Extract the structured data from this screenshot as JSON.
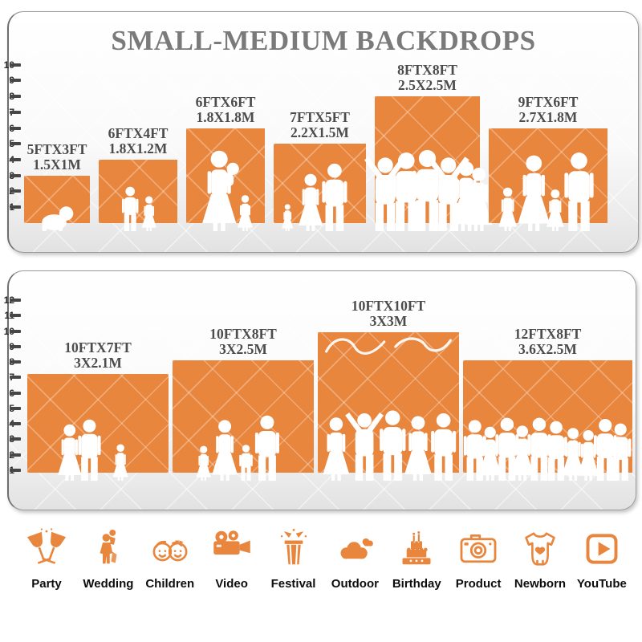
{
  "title": "SMALL-MEDIUM BACKDROPS",
  "accent_color": "#E8863E",
  "silhouette_color": "#FFFFFF",
  "ruler_unit": "FT",
  "panels": [
    {
      "name": "small-medium-group",
      "ruler": {
        "min": 1,
        "max": 10
      },
      "backdrops": [
        {
          "size_ft": "5FTX3FT",
          "size_m": "1.5X1M",
          "width_ft": 5,
          "height_ft": 3,
          "people": [
            {
              "type": "baby-crawl",
              "x": 0.48,
              "h": 0.62
            }
          ]
        },
        {
          "size_ft": "6FTX4FT",
          "size_m": "1.8X1.2M",
          "width_ft": 6,
          "height_ft": 4,
          "people": [
            {
              "type": "boy",
              "x": 0.4,
              "h": 0.7
            },
            {
              "type": "girl",
              "x": 0.64,
              "h": 0.55
            }
          ]
        },
        {
          "size_ft": "6FTX6FT",
          "size_m": "1.8X1.8M",
          "width_ft": 6,
          "height_ft": 6,
          "people": [
            {
              "type": "woman-baby",
              "x": 0.42,
              "h": 0.85
            },
            {
              "type": "girl",
              "x": 0.75,
              "h": 0.38
            }
          ]
        },
        {
          "size_ft": "7FTX5FT",
          "size_m": "2.2X1.5M",
          "width_ft": 7,
          "height_ft": 5,
          "people": [
            {
              "type": "girl",
              "x": 0.15,
              "h": 0.34
            },
            {
              "type": "woman",
              "x": 0.4,
              "h": 0.72
            },
            {
              "type": "man",
              "x": 0.66,
              "h": 0.85
            }
          ]
        },
        {
          "size_ft": "8FTX8FT",
          "size_m": "2.5X2.5M",
          "width_ft": 8,
          "height_ft": 8,
          "people": [
            {
              "type": "man-arms-up",
              "x": 0.1,
              "h": 0.58
            },
            {
              "type": "man",
              "x": 0.3,
              "h": 0.62
            },
            {
              "type": "man",
              "x": 0.5,
              "h": 0.64
            },
            {
              "type": "man-arms-up",
              "x": 0.7,
              "h": 0.58
            },
            {
              "type": "woman",
              "x": 0.87,
              "h": 0.55
            },
            {
              "type": "woman",
              "x": 0.99,
              "h": 0.5
            }
          ]
        },
        {
          "size_ft": "9FTX6FT",
          "size_m": "2.7X1.8M",
          "width_ft": 9,
          "height_ft": 6,
          "people": [
            {
              "type": "girl",
              "x": 0.16,
              "h": 0.46
            },
            {
              "type": "woman",
              "x": 0.38,
              "h": 0.8
            },
            {
              "type": "girl",
              "x": 0.56,
              "h": 0.44
            },
            {
              "type": "man",
              "x": 0.76,
              "h": 0.83
            }
          ]
        }
      ]
    },
    {
      "name": "medium-large-group",
      "ruler": {
        "min": 1,
        "max": 12
      },
      "backdrops": [
        {
          "size_ft": "10FTX7FT",
          "size_m": "3X2.1M",
          "width_ft": 10,
          "height_ft": 7,
          "people": [
            {
              "type": "woman",
              "x": 0.3,
              "h": 0.57
            },
            {
              "type": "man",
              "x": 0.44,
              "h": 0.62
            },
            {
              "type": "girl",
              "x": 0.66,
              "h": 0.37
            }
          ]
        },
        {
          "size_ft": "10FTX8FT",
          "size_m": "3X2.5M",
          "width_ft": 10,
          "height_ft": 8,
          "people": [
            {
              "type": "girl",
              "x": 0.22,
              "h": 0.31
            },
            {
              "type": "woman",
              "x": 0.37,
              "h": 0.54
            },
            {
              "type": "boy",
              "x": 0.52,
              "h": 0.32
            },
            {
              "type": "man",
              "x": 0.67,
              "h": 0.58
            }
          ]
        },
        {
          "size_ft": "10FTX10FT",
          "size_m": "3X3M",
          "width_ft": 10,
          "height_ft": 10,
          "decor": "script-squiggle",
          "people": [
            {
              "type": "woman",
              "x": 0.13,
              "h": 0.45
            },
            {
              "type": "man-arms-up",
              "x": 0.33,
              "h": 0.48
            },
            {
              "type": "man",
              "x": 0.53,
              "h": 0.5
            },
            {
              "type": "woman",
              "x": 0.71,
              "h": 0.46
            },
            {
              "type": "man",
              "x": 0.89,
              "h": 0.48
            }
          ]
        },
        {
          "size_ft": "12FTX8FT",
          "size_m": "3.6X2.5M",
          "width_ft": 12,
          "height_ft": 8,
          "people": [
            {
              "type": "man",
              "x": 0.07,
              "h": 0.54
            },
            {
              "type": "woman",
              "x": 0.16,
              "h": 0.48
            },
            {
              "type": "man",
              "x": 0.26,
              "h": 0.56
            },
            {
              "type": "woman",
              "x": 0.35,
              "h": 0.49
            },
            {
              "type": "man",
              "x": 0.45,
              "h": 0.56
            },
            {
              "type": "man",
              "x": 0.55,
              "h": 0.53
            },
            {
              "type": "woman",
              "x": 0.65,
              "h": 0.47
            },
            {
              "type": "woman",
              "x": 0.74,
              "h": 0.45
            },
            {
              "type": "man",
              "x": 0.84,
              "h": 0.55
            },
            {
              "type": "man",
              "x": 0.93,
              "h": 0.51
            }
          ]
        }
      ]
    }
  ],
  "categories": [
    {
      "label": "Party",
      "icon": "party-icon"
    },
    {
      "label": "Wedding",
      "icon": "wedding-icon"
    },
    {
      "label": "Children",
      "icon": "children-icon"
    },
    {
      "label": "Video",
      "icon": "video-icon"
    },
    {
      "label": "Festival",
      "icon": "festival-icon"
    },
    {
      "label": "Outdoor",
      "icon": "outdoor-icon"
    },
    {
      "label": "Birthday",
      "icon": "birthday-icon"
    },
    {
      "label": "Product",
      "icon": "product-icon"
    },
    {
      "label": "Newborn",
      "icon": "newborn-icon"
    },
    {
      "label": "YouTube",
      "icon": "youtube-icon"
    }
  ]
}
